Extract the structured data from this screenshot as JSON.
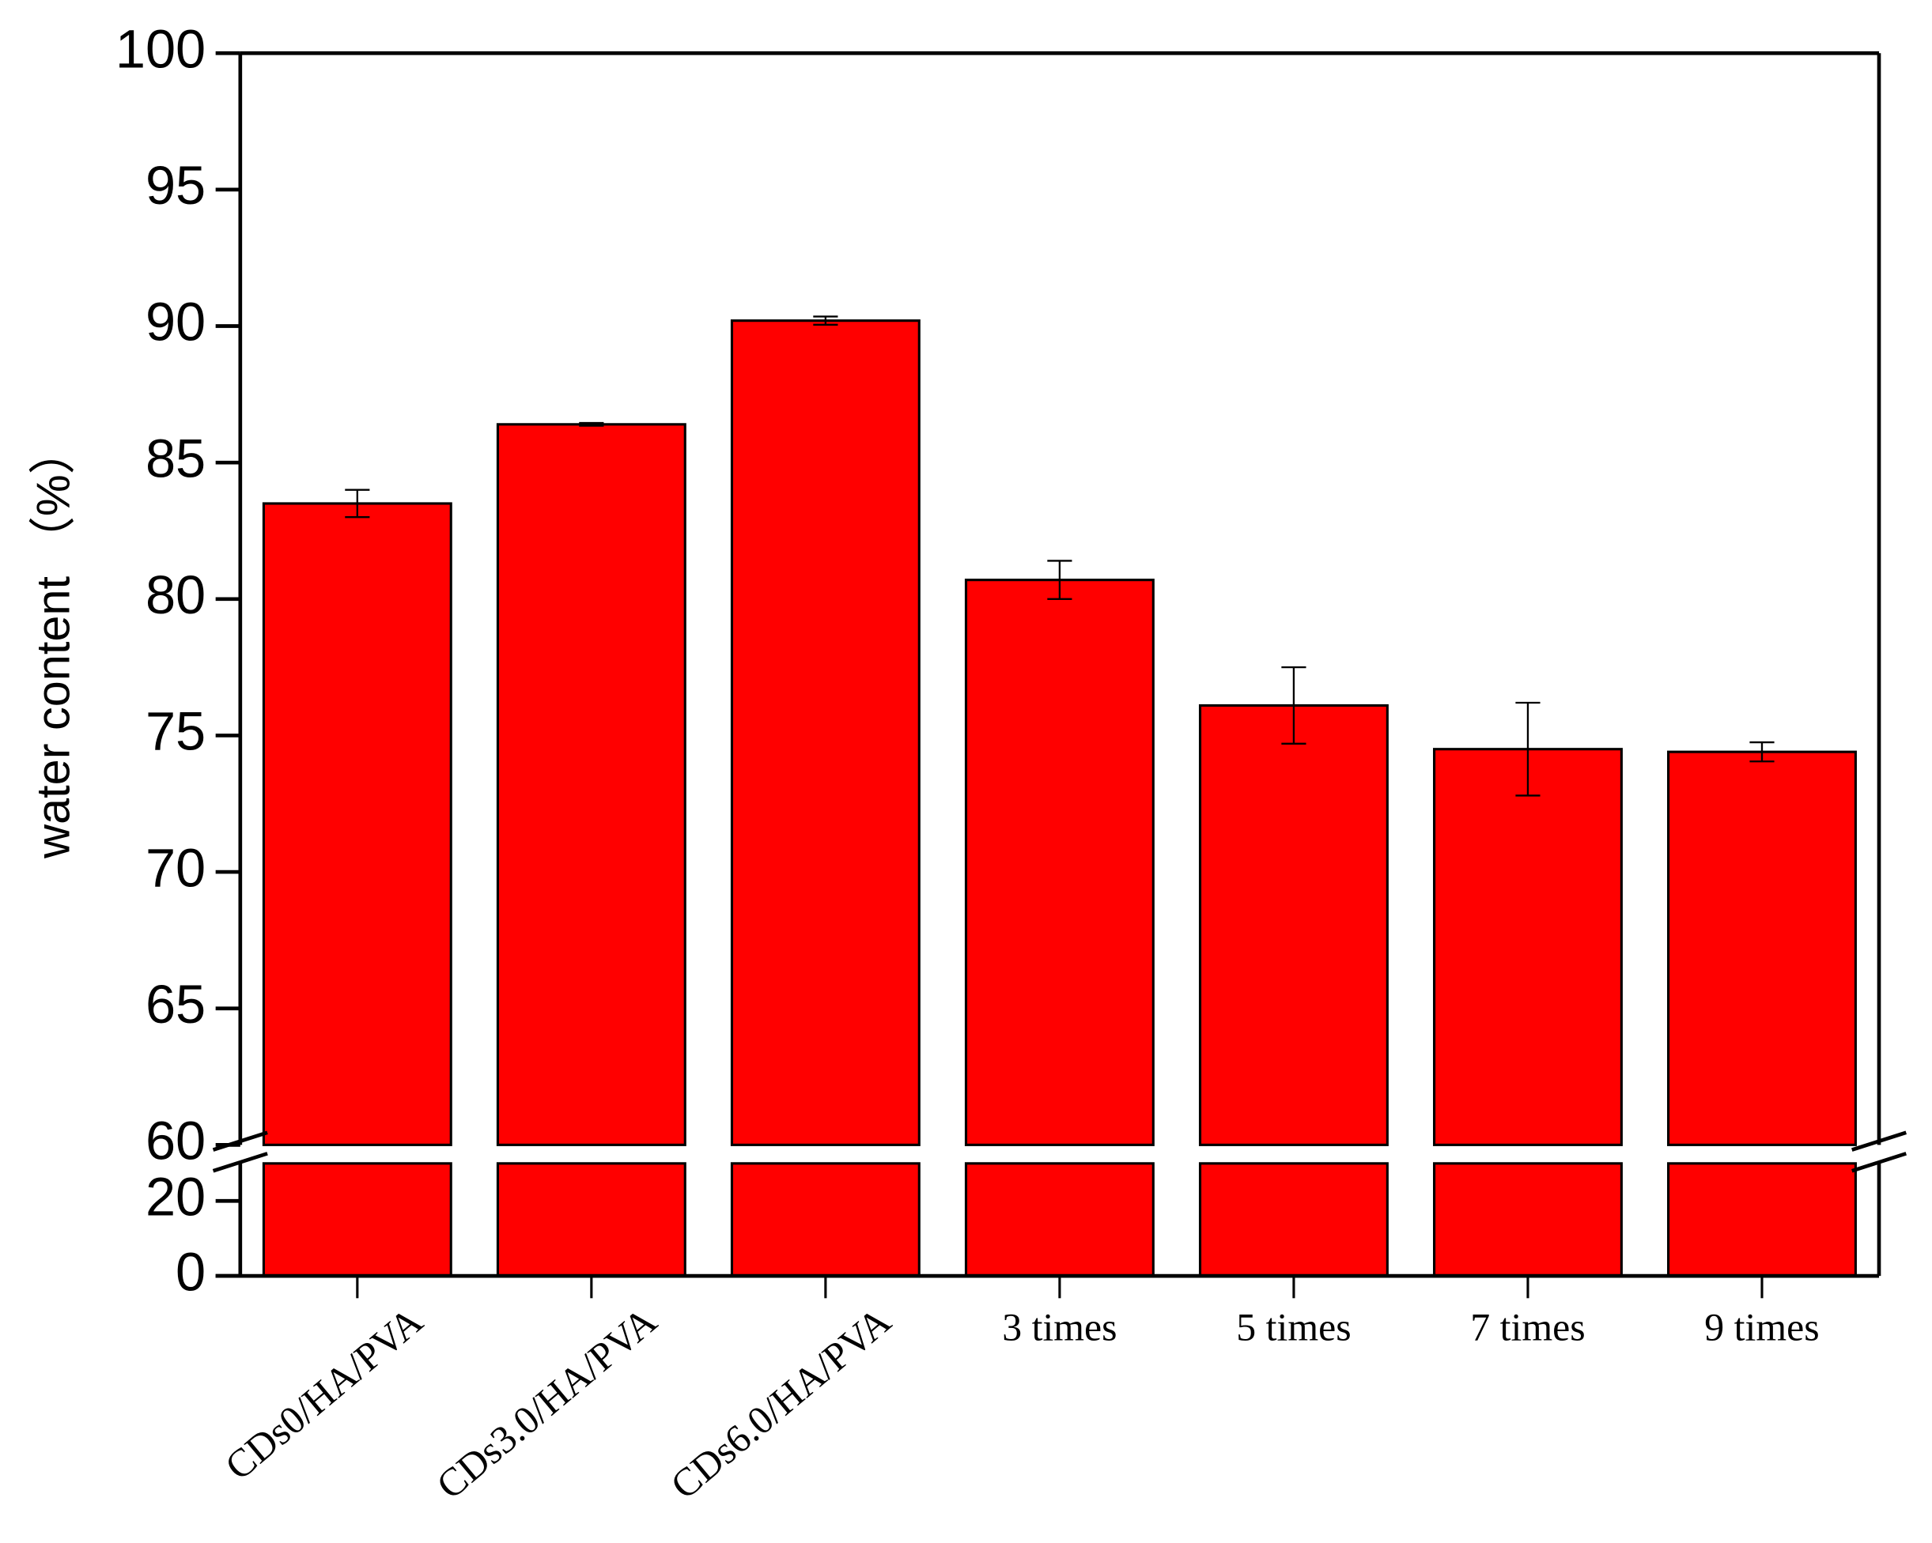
{
  "chart_data": {
    "type": "bar",
    "y_label": "water content （%）",
    "categories": [
      "CDs0/HA/PVA",
      "CDs3.0/HA/PVA",
      "CDs6.0/HA/PVA",
      "3 times",
      "5 times",
      "7 times",
      "9 times"
    ],
    "values": [
      83.5,
      86.4,
      90.2,
      80.7,
      76.1,
      74.5,
      74.4
    ],
    "errors": [
      0.5,
      0.05,
      0.15,
      0.7,
      1.4,
      1.7,
      0.35
    ],
    "color": "#ff0000",
    "ylim": [
      60,
      100
    ],
    "yticks": [
      60,
      65,
      70,
      75,
      80,
      85,
      90,
      95,
      100
    ],
    "ylim_lower": [
      0,
      30
    ],
    "yticks_lower": [
      0,
      20
    ]
  }
}
